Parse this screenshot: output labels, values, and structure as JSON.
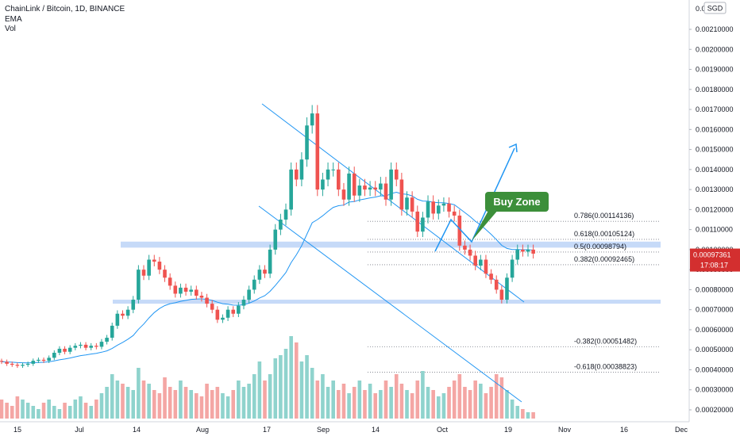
{
  "header": {
    "symbol": "ChainLink / Bitcoin, 1D, BINANCE",
    "ind1": "EMA",
    "ind2": "Vol"
  },
  "currency": "SGD",
  "chart_data": {
    "type": "candlestick",
    "symbol": "ChainLink / Bitcoin",
    "interval": "1D",
    "exchange": "BINANCE",
    "y_axis": {
      "ticks": [
        "0.00210000",
        "0.00200000",
        "0.00190000",
        "0.00180000",
        "0.00170000",
        "0.00160000",
        "0.00150000",
        "0.00140000",
        "0.00130000",
        "0.00120000",
        "0.00110000",
        "0.00100000",
        "0.00090000",
        "0.00080000",
        "0.00070000",
        "0.00060000",
        "0.00050000",
        "0.00040000",
        "0.00030000",
        "0.00020000"
      ],
      "top_partial": "0.0",
      "range": [
        0.00015,
        0.00225
      ]
    },
    "x_axis": {
      "labels": [
        "15",
        "Jul",
        "14",
        "Aug",
        "17",
        "Sep",
        "14",
        "Oct",
        "19",
        "Nov",
        "16",
        "Dec"
      ]
    },
    "last_price": "0.00097361",
    "countdown": "17:08:17",
    "fib_levels": [
      {
        "label": "0.786(0.00114136)",
        "value": 0.00114136
      },
      {
        "label": "0.618(0.00105124)",
        "value": 0.00105124
      },
      {
        "label": "0.5(0.00098794)",
        "value": 0.00098794
      },
      {
        "label": "0.382(0.00092465)",
        "value": 0.00092465
      },
      {
        "label": "-0.382(0.00051482)",
        "value": 0.00051482
      },
      {
        "label": "-0.618(0.00038823)",
        "value": 0.00038823
      }
    ],
    "zones": [
      {
        "from": 0.00101,
        "to": 0.00104
      },
      {
        "from": 0.00073,
        "to": 0.00075
      }
    ],
    "annotation": "Buy Zone",
    "colors": {
      "up": "#26a69a",
      "down": "#ef5350",
      "vol_up": "#8fd3cd",
      "vol_down": "#f4a6a4",
      "ema": "#2196f3",
      "channel": "#2196f3",
      "zone": "#bcd3f7",
      "buy_zone_bg": "#3c8f3a",
      "price_tag": "#d32f2f"
    }
  }
}
